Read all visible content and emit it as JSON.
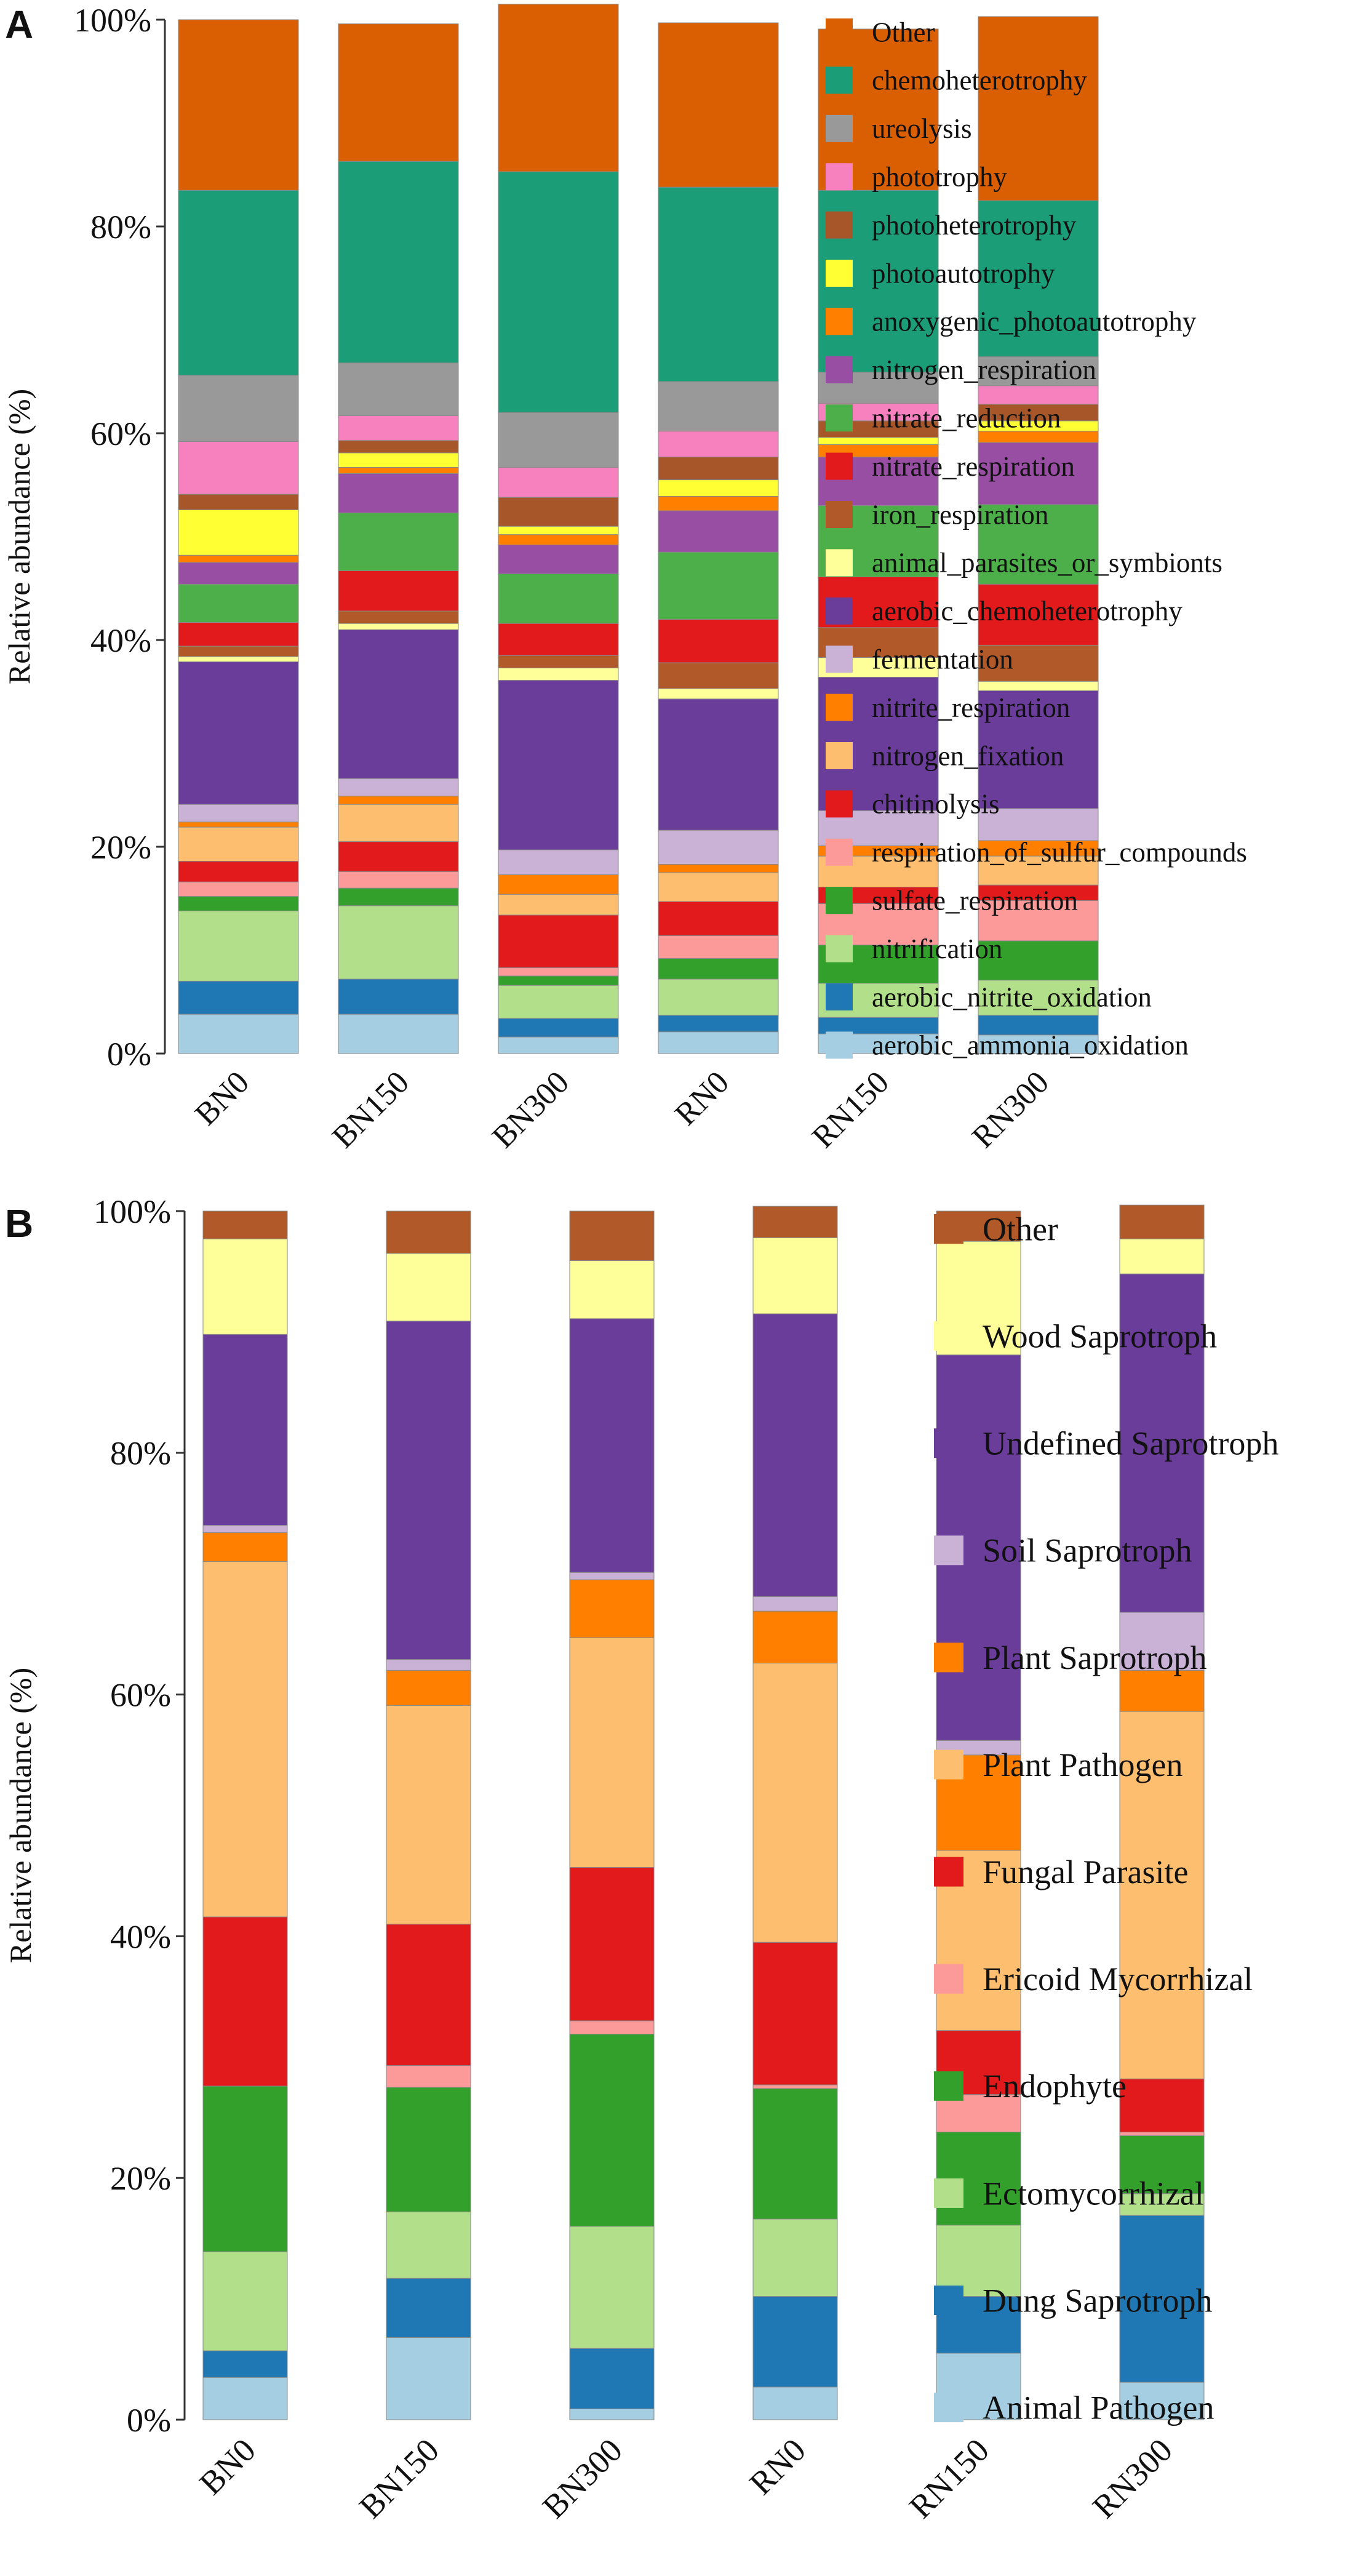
{
  "chart_data": [
    {
      "panel": "A",
      "type": "bar",
      "stacked": true,
      "ylabel": "Relative abundance (%)",
      "ylim": [
        0,
        100
      ],
      "yticks": [
        "0%",
        "20%",
        "40%",
        "60%",
        "80%",
        "100%"
      ],
      "categories": [
        "BN0",
        "BN150",
        "BN300",
        "RN0",
        "RN150",
        "RN300"
      ],
      "legend_position": "right",
      "series": [
        {
          "name": "aerobic_ammonia_oxidation",
          "color": "#a6cee3",
          "values": [
            3.8,
            3.8,
            1.6,
            2.1,
            1.9,
            1.8
          ]
        },
        {
          "name": "aerobic_nitrite_oxidation",
          "color": "#1f78b4",
          "values": [
            3.2,
            3.4,
            1.8,
            1.6,
            1.6,
            1.9
          ]
        },
        {
          "name": "nitrification",
          "color": "#b2df8a",
          "values": [
            6.8,
            7.1,
            3.2,
            3.5,
            3.3,
            3.4
          ]
        },
        {
          "name": "sulfate_respiration",
          "color": "#33a02c",
          "values": [
            1.4,
            1.7,
            0.9,
            2.0,
            3.7,
            3.8
          ]
        },
        {
          "name": "respiration_of_sulfur_compounds",
          "color": "#fb9a99",
          "values": [
            1.4,
            1.6,
            0.8,
            2.2,
            4.0,
            3.9
          ]
        },
        {
          "name": "chitinolysis",
          "color": "#e31a1c",
          "values": [
            2.0,
            2.9,
            5.1,
            3.3,
            1.6,
            1.5
          ]
        },
        {
          "name": "nitrogen_fixation",
          "color": "#fdbf6f",
          "values": [
            3.3,
            3.6,
            2.0,
            2.8,
            3.0,
            2.8
          ]
        },
        {
          "name": "nitrite_respiration",
          "color": "#ff7f00",
          "values": [
            0.5,
            0.8,
            1.9,
            0.8,
            1.0,
            1.5
          ]
        },
        {
          "name": "fermentation",
          "color": "#cab2d6",
          "values": [
            1.7,
            1.7,
            2.4,
            3.3,
            3.4,
            3.1
          ]
        },
        {
          "name": "aerobic_chemoheterotrophy",
          "color": "#6a3d9a",
          "values": [
            13.8,
            14.4,
            16.4,
            12.7,
            12.9,
            11.4
          ]
        },
        {
          "name": "animal_parasites_or_symbionts",
          "color": "#ffff99",
          "values": [
            0.5,
            0.6,
            1.2,
            1.0,
            1.9,
            0.9
          ]
        },
        {
          "name": "iron_respiration",
          "color": "#b15928",
          "values": [
            1.0,
            1.2,
            1.2,
            2.5,
            2.9,
            3.5
          ]
        },
        {
          "name": "nitrate_respiration",
          "color": "#e31a1c",
          "values": [
            2.3,
            3.9,
            3.1,
            4.2,
            4.9,
            5.9
          ]
        },
        {
          "name": "nitrate_reduction",
          "color": "#4daf4a",
          "values": [
            3.7,
            5.6,
            4.8,
            6.5,
            6.9,
            7.7
          ]
        },
        {
          "name": "nitrogen_respiration",
          "color": "#984ea3",
          "values": [
            2.1,
            3.8,
            2.8,
            4.0,
            4.7,
            6.0
          ]
        },
        {
          "name": "anoxygenic_photoautotrophy",
          "color": "#ff7f00",
          "values": [
            0.7,
            0.6,
            1.0,
            1.4,
            1.2,
            1.1
          ]
        },
        {
          "name": "photoautotrophy",
          "color": "#ffff33",
          "values": [
            4.4,
            1.4,
            0.8,
            1.6,
            0.7,
            1.0
          ]
        },
        {
          "name": "photoheterotrophy",
          "color": "#a65628",
          "values": [
            1.5,
            1.2,
            2.8,
            2.2,
            1.6,
            1.6
          ]
        },
        {
          "name": "phototrophy",
          "color": "#f781bf",
          "values": [
            5.1,
            2.4,
            2.9,
            2.5,
            1.7,
            1.8
          ]
        },
        {
          "name": "ureolysis",
          "color": "#999999",
          "values": [
            6.4,
            5.1,
            5.3,
            4.8,
            3.0,
            2.8
          ]
        },
        {
          "name": "chemoheterotrophy",
          "color": "#1b9e77",
          "values": [
            17.9,
            19.5,
            23.3,
            18.8,
            17.6,
            15.1
          ]
        },
        {
          "name": "Other",
          "color": "#d95f02",
          "values": [
            16.5,
            13.3,
            16.2,
            15.9,
            15.6,
            17.8
          ]
        }
      ]
    },
    {
      "panel": "B",
      "type": "bar",
      "stacked": true,
      "ylabel": "Relative abundance (%)",
      "ylim": [
        0,
        100
      ],
      "yticks": [
        "0%",
        "20%",
        "40%",
        "60%",
        "80%",
        "100%"
      ],
      "categories": [
        "BN0",
        "BN150",
        "BN300",
        "RN0",
        "RN150",
        "RN300"
      ],
      "legend_position": "right",
      "series": [
        {
          "name": "Animal Pathogen",
          "color": "#a6cee3",
          "values": [
            3.5,
            6.8,
            0.9,
            2.7,
            5.5,
            3.1
          ]
        },
        {
          "name": "Dung Saprotroph",
          "color": "#1f78b4",
          "values": [
            2.2,
            4.9,
            5.0,
            7.5,
            4.7,
            13.8
          ]
        },
        {
          "name": "Ectomycorrhizal",
          "color": "#b2df8a",
          "values": [
            8.2,
            5.5,
            10.1,
            6.4,
            5.9,
            1.8
          ]
        },
        {
          "name": "Endophyte",
          "color": "#33a02c",
          "values": [
            13.7,
            10.3,
            15.9,
            10.8,
            7.7,
            4.8
          ]
        },
        {
          "name": "Ericoid Mycorrhizal",
          "color": "#fb9a99",
          "values": [
            0.0,
            1.8,
            1.1,
            0.3,
            3.1,
            0.3
          ]
        },
        {
          "name": "Fungal Parasite",
          "color": "#e31a1c",
          "values": [
            14.0,
            11.7,
            12.7,
            11.8,
            5.3,
            4.4
          ]
        },
        {
          "name": "Plant Pathogen",
          "color": "#fdbf6f",
          "values": [
            29.4,
            18.1,
            19.0,
            23.1,
            14.9,
            30.4
          ]
        },
        {
          "name": "Plant Saprotroph",
          "color": "#ff7f00",
          "values": [
            2.4,
            2.9,
            4.8,
            4.3,
            7.9,
            3.4
          ]
        },
        {
          "name": "Soil Saprotroph",
          "color": "#cab2d6",
          "values": [
            0.6,
            0.9,
            0.6,
            1.2,
            1.2,
            4.8
          ]
        },
        {
          "name": "Undefined Saprotroph",
          "color": "#6a3d9a",
          "values": [
            15.8,
            28.0,
            21.0,
            23.4,
            31.9,
            28.0
          ]
        },
        {
          "name": "Wood Saprotroph",
          "color": "#ffff99",
          "values": [
            7.9,
            5.6,
            4.8,
            6.3,
            9.4,
            2.9
          ]
        },
        {
          "name": "Other",
          "color": "#b15928",
          "values": [
            2.3,
            3.5,
            4.1,
            2.6,
            2.5,
            2.8
          ]
        }
      ]
    }
  ]
}
